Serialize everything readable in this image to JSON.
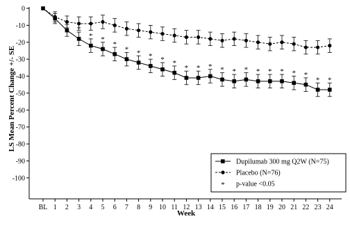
{
  "chart_data": {
    "type": "line",
    "xlabel": "Week",
    "ylabel": "LS Mean Percent Change +/- SE",
    "categories": [
      "BL",
      "1",
      "2",
      "3",
      "4",
      "5",
      "6",
      "7",
      "8",
      "9",
      "10",
      "11",
      "12",
      "13",
      "14",
      "15",
      "16",
      "17",
      "18",
      "19",
      "20",
      "21",
      "22",
      "23",
      "24"
    ],
    "y_ticks": [
      0,
      -10,
      -20,
      -30,
      -40,
      -50,
      -60,
      -70,
      -80,
      -90,
      -100
    ],
    "ylim": [
      -110,
      0
    ],
    "grid": false,
    "legend_position": "bottom-right",
    "significance_marker": "*",
    "series": [
      {
        "name": "Dupilumab 300 mg Q2W (N=75)",
        "marker": "square",
        "line_style": "solid",
        "values": [
          0,
          -6,
          -13,
          -18,
          -22,
          -24,
          -27,
          -30,
          -32,
          -34,
          -36,
          -38,
          -41,
          -41,
          -40,
          -42,
          -43,
          -42,
          -43,
          -43,
          -43,
          -44,
          -45,
          -48,
          -48
        ],
        "se": [
          0,
          3,
          3.5,
          4,
          4,
          4,
          4,
          4,
          4,
          4,
          4,
          4,
          4,
          4,
          4,
          4,
          4,
          4,
          4,
          4,
          4,
          4,
          4,
          4,
          4
        ],
        "significant": [
          false,
          false,
          false,
          true,
          true,
          true,
          true,
          true,
          true,
          true,
          true,
          true,
          true,
          true,
          true,
          true,
          true,
          true,
          true,
          true,
          true,
          true,
          true,
          true,
          true
        ]
      },
      {
        "name": "Placebo (N=76)",
        "marker": "circle",
        "line_style": "dashed",
        "values": [
          0,
          -5,
          -8,
          -9,
          -9,
          -8,
          -10,
          -12,
          -13,
          -14,
          -15,
          -16,
          -17,
          -17,
          -18,
          -19,
          -18,
          -19,
          -20,
          -21,
          -20,
          -21,
          -23,
          -23,
          -22
        ],
        "se": [
          0,
          3,
          3.5,
          4,
          4,
          4,
          4,
          4,
          4,
          4,
          4,
          4,
          4,
          4,
          4,
          4,
          4,
          4,
          4,
          4,
          4,
          4,
          4,
          4,
          4
        ]
      }
    ],
    "legend": [
      {
        "symbol": "square",
        "label": "Dupilumab 300 mg Q2W (N=75)"
      },
      {
        "symbol": "circle",
        "label": "Placebo (N=76)"
      },
      {
        "symbol": "*",
        "label": "p-value <0.05"
      }
    ]
  }
}
